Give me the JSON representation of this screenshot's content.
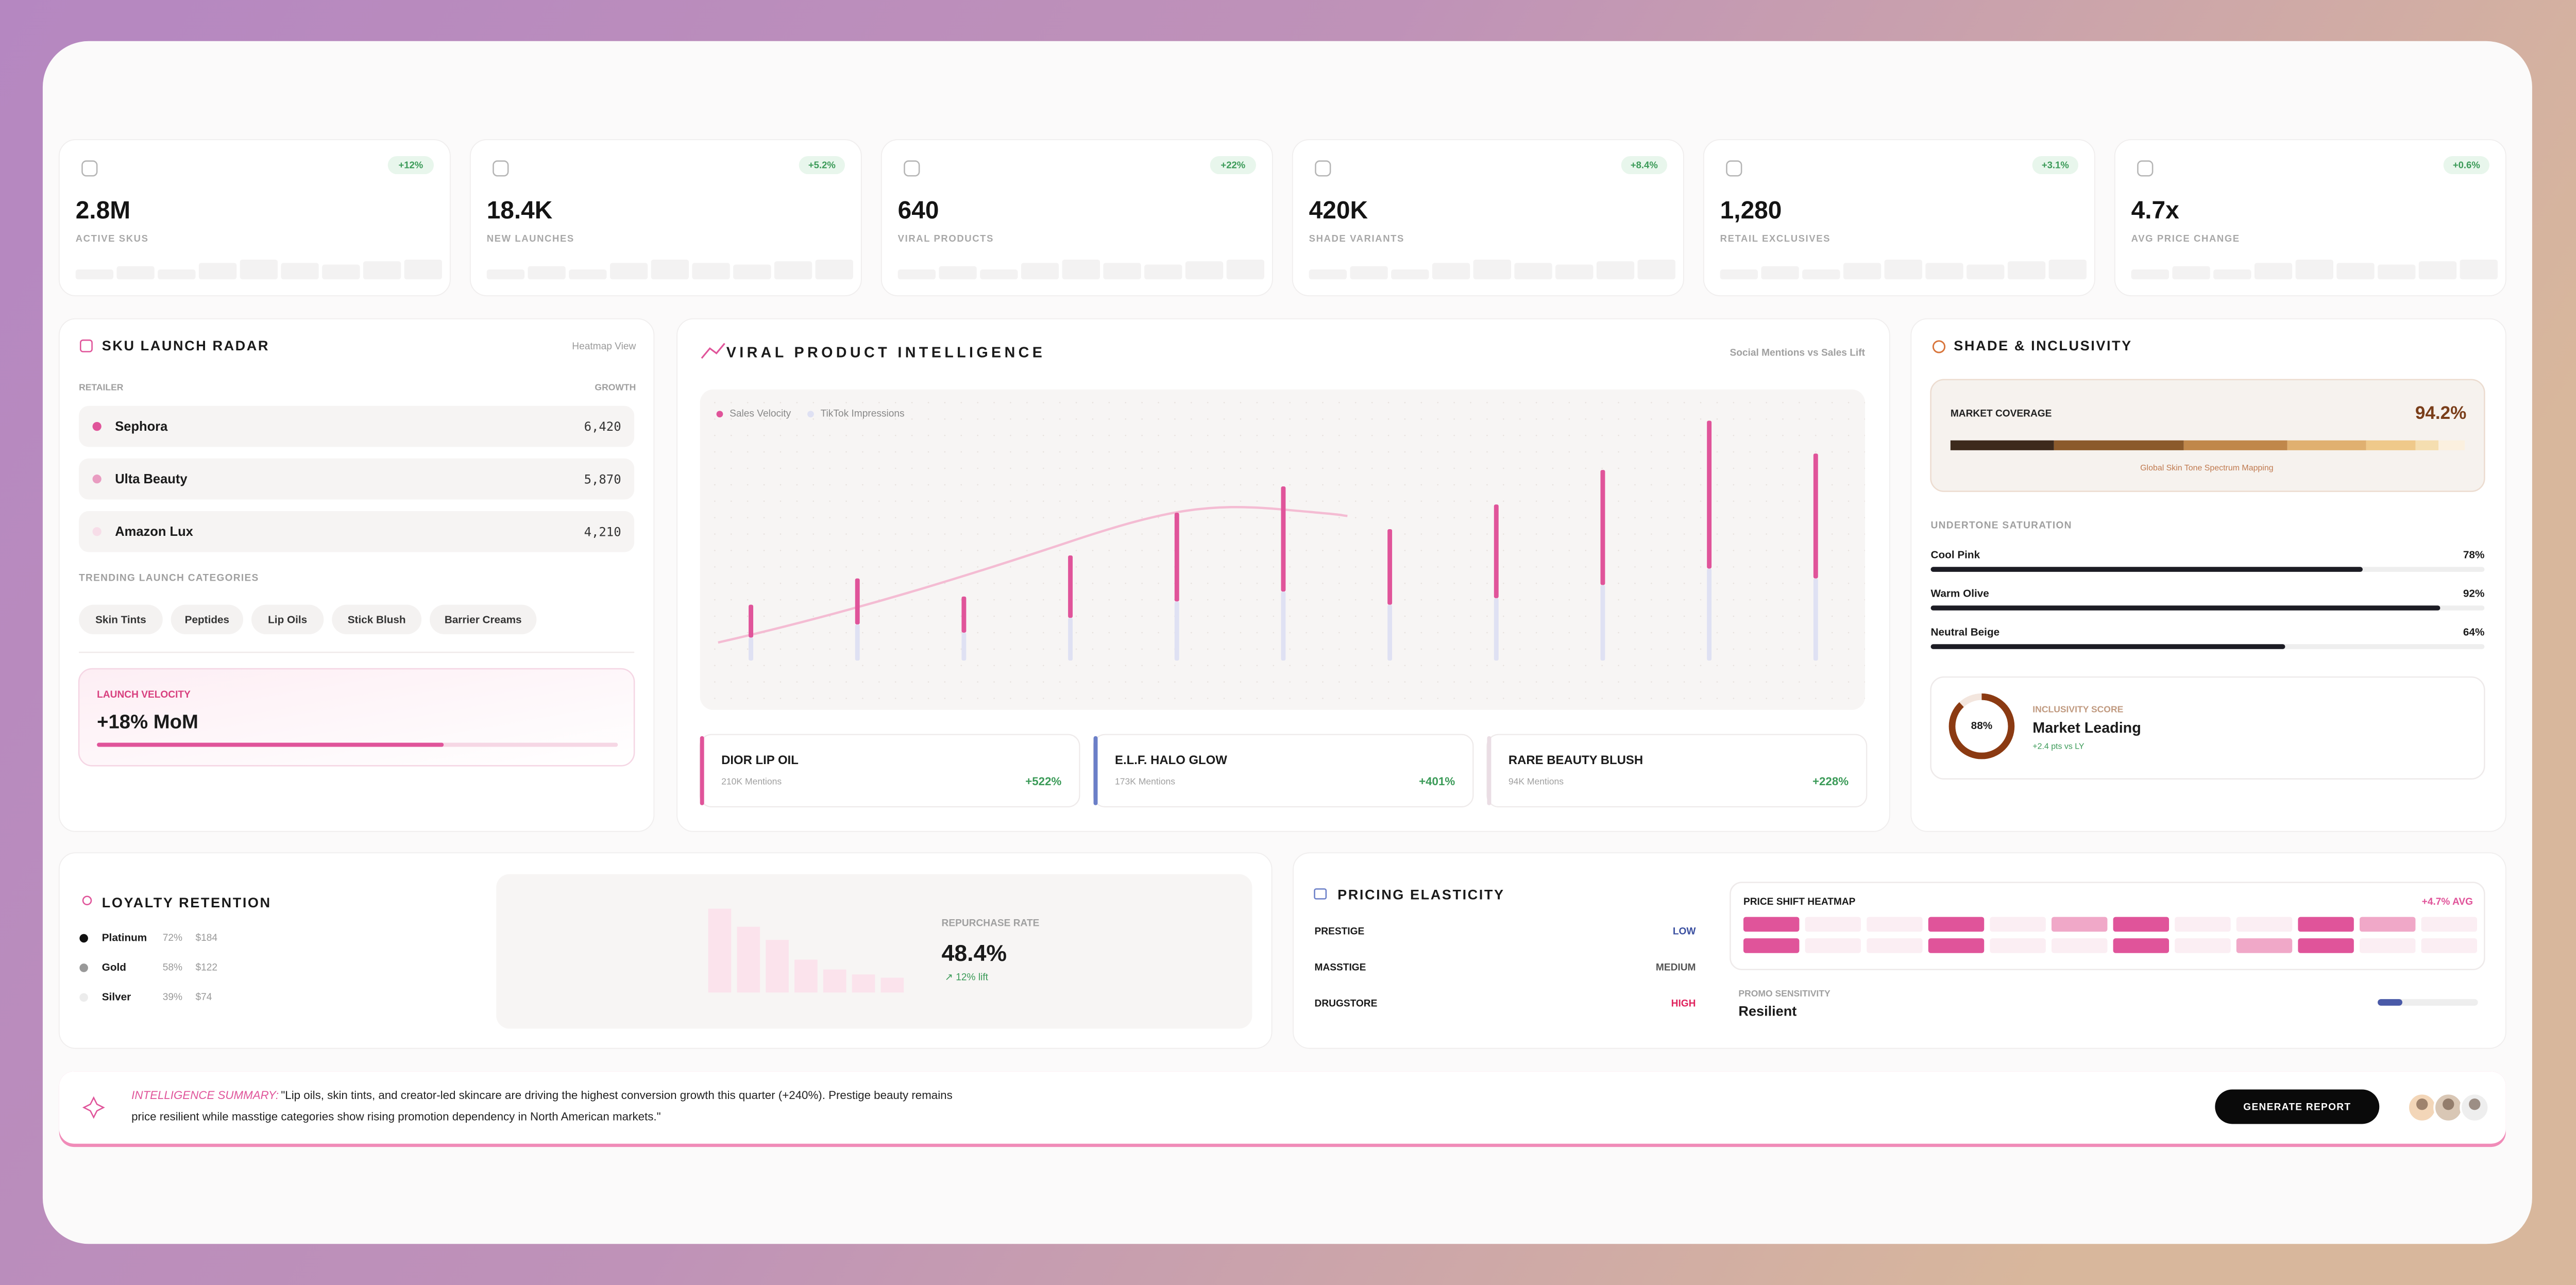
{
  "kpis": [
    {
      "value": "2.8M",
      "label": "ACTIVE SKUS",
      "change": "+12%"
    },
    {
      "value": "18.4K",
      "label": "NEW LAUNCHES",
      "change": "+5.2%"
    },
    {
      "value": "640",
      "label": "VIRAL PRODUCTS",
      "change": "+22%"
    },
    {
      "value": "420K",
      "label": "SHADE VARIANTS",
      "change": "+8.4%"
    },
    {
      "value": "1,280",
      "label": "RETAIL EXCLUSIVES",
      "change": "+3.1%"
    },
    {
      "value": "4.7x",
      "label": "AVG PRICE CHANGE",
      "change": "+0.6%"
    }
  ],
  "sku_radar": {
    "title": "SKU LAUNCH RADAR",
    "view": "Heatmap View",
    "col_left": "RETAILER",
    "col_right": "GROWTH",
    "retailers": [
      {
        "name": "Sephora",
        "value": "6,420"
      },
      {
        "name": "Ulta Beauty",
        "value": "5,870"
      },
      {
        "name": "Amazon Lux",
        "value": "4,210"
      }
    ],
    "categories_title": "TRENDING LAUNCH CATEGORIES",
    "categories": [
      "Skin Tints",
      "Peptides",
      "Lip Oils",
      "Stick Blush",
      "Barrier Creams"
    ],
    "velocity_label": "LAUNCH VELOCITY",
    "velocity_value": "+18% MoM"
  },
  "viral": {
    "title": "VIRAL PRODUCT INTELLIGENCE",
    "subtitle": "Social Mentions vs Sales Lift",
    "chart_data": {
      "type": "bar",
      "stacked": true,
      "categories": [
        null,
        null,
        null,
        null,
        null,
        null,
        null,
        null,
        null,
        null,
        null
      ],
      "series": [
        {
          "name": "Sales Velocity",
          "color": "#e0549a",
          "values": [
            20,
            28,
            22,
            38,
            54,
            64,
            46,
            57,
            70,
            90,
            76
          ]
        },
        {
          "name": "TikTok Impressions",
          "color": "#dfe1f3",
          "values": [
            14,
            22,
            17,
            26,
            36,
            42,
            34,
            38,
            46,
            56,
            50
          ]
        }
      ]
    },
    "products": [
      {
        "name": "DIOR LIP OIL",
        "mentions": "210K Mentions",
        "change": "+522%"
      },
      {
        "name": "E.L.F. HALO GLOW",
        "mentions": "173K Mentions",
        "change": "+401%"
      },
      {
        "name": "RARE BEAUTY BLUSH",
        "mentions": "94K Mentions",
        "change": "+228%"
      }
    ]
  },
  "shade": {
    "title": "SHADE & INCLUSIVITY",
    "coverage_label": "MARKET COVERAGE",
    "coverage_value": "94.2%",
    "spectrum_caption": "Global Skin Tone Spectrum Mapping",
    "undertone_title": "UNDERTONE SATURATION",
    "undertones": [
      {
        "name": "Cool Pink",
        "value": 78,
        "value_label": "78%"
      },
      {
        "name": "Warm Olive",
        "value": 92,
        "value_label": "92%"
      },
      {
        "name": "Neutral Beige",
        "value": 64,
        "value_label": "64%"
      }
    ],
    "score": {
      "value": 88,
      "label": "88%"
    },
    "score_label": "INCLUSIVITY SCORE",
    "score_text": "Market Leading",
    "score_change": "+2.4 pts vs LY"
  },
  "loyalty": {
    "title": "LOYALTY RETENTION",
    "tiers": [
      {
        "name": "Platinum",
        "pct": "72%",
        "amount": "$184"
      },
      {
        "name": "Gold",
        "pct": "58%",
        "amount": "$122"
      },
      {
        "name": "Silver",
        "pct": "39%",
        "amount": "$74"
      }
    ],
    "repurchase_bars": [
      51,
      40,
      32,
      20,
      14,
      11,
      9
    ],
    "repurchase_label": "REPURCHASE RATE",
    "repurchase_value": "48.4%",
    "repurchase_lift": "↗ 12% lift"
  },
  "pricing": {
    "title": "PRICING ELASTICITY",
    "segments": [
      {
        "name": "PRESTIGE",
        "level": "LOW"
      },
      {
        "name": "MASSTIGE",
        "level": "MEDIUM"
      },
      {
        "name": "DRUGSTORE",
        "level": "HIGH"
      }
    ],
    "heatmap_title": "PRICE SHIFT HEATMAP",
    "heatmap_avg": "+4.7% AVG",
    "heatmap": [
      [
        2,
        0,
        0,
        2,
        0,
        1,
        2,
        0,
        0,
        2,
        1,
        0
      ],
      [
        2,
        0,
        0,
        2,
        0,
        0,
        2,
        0,
        1,
        2,
        0,
        0
      ]
    ],
    "promo_label": "PROMO SENSITIVITY",
    "promo_value": "Resilient"
  },
  "summary": {
    "label": "INTELLIGENCE SUMMARY:",
    "lines": [
      "\"Lip oils, skin tints, and creator-led skincare are driving the highest conversion growth this quarter (+240%). Prestige beauty remains",
      "price resilient while masstige categories show rising promotion dependency in North American markets.\""
    ],
    "button": "GENERATE REPORT"
  }
}
